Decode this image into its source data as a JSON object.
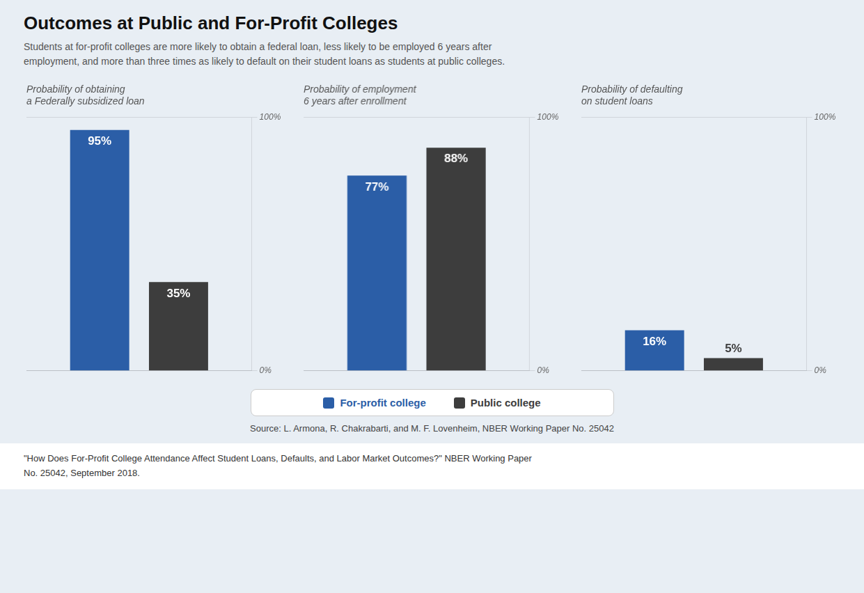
{
  "title": "Outcomes at Public and For-Profit Colleges",
  "subtitle": "Students at for-profit colleges are more likely to obtain a federal loan, less likely to be employed 6 years after\nemployment, and more than three times as likely to default on their student loans as students at public colleges.",
  "annotations": [
    "Source: L. Armona, R. Chakrabarti, and M. F. Lovenheim, NBER Working Paper No. 25042",
    "\"How Does For-Profit College Attendance Affect Student Loans, Defaults, and Labor Market Outcomes?\" NBER Working Paper\nNo. 25042, September 2018."
  ],
  "legend": "bottom",
  "chart_data": [
    {
      "type": "bar",
      "title": "Probability of obtaining\na Federally subsidized loan",
      "categories": [
        null
      ],
      "series": [
        {
          "name": "For-profit college",
          "color": "#2B5EA7",
          "values": [
            95
          ],
          "value_labels": [
            "95%"
          ]
        },
        {
          "name": "Public college",
          "color": "#3D3D3D",
          "values": [
            35
          ],
          "value_labels": [
            "35%"
          ]
        }
      ],
      "ylim": [
        0,
        100
      ],
      "yticks": [
        {
          "value": 0,
          "label": "0%"
        },
        {
          "value": 100,
          "label": "100%"
        }
      ],
      "grid": true,
      "data_labels": true,
      "tick_labels": "y"
    },
    {
      "type": "bar",
      "title": "Probability of employment\n6 years after enrollment",
      "categories": [
        null
      ],
      "series": [
        {
          "name": "For-profit college",
          "color": "#2B5EA7",
          "values": [
            77
          ],
          "value_labels": [
            "77%"
          ]
        },
        {
          "name": "Public college",
          "color": "#3D3D3D",
          "values": [
            88
          ],
          "value_labels": [
            "88%"
          ]
        }
      ],
      "ylim": [
        0,
        100
      ],
      "yticks": [
        {
          "value": 0,
          "label": "0%"
        },
        {
          "value": 100,
          "label": "100%"
        }
      ],
      "grid": true,
      "data_labels": true,
      "tick_labels": "y"
    },
    {
      "type": "bar",
      "title": "Probability of defaulting\non student loans",
      "categories": [
        null
      ],
      "series": [
        {
          "name": "For-profit college",
          "color": "#2B5EA7",
          "values": [
            16
          ],
          "value_labels": [
            "16%"
          ]
        },
        {
          "name": "Public college",
          "color": "#3D3D3D",
          "values": [
            5
          ],
          "value_labels": [
            "5%"
          ]
        }
      ],
      "ylim": [
        0,
        100
      ],
      "yticks": [
        {
          "value": 0,
          "label": "0%"
        },
        {
          "value": 100,
          "label": "100%"
        }
      ],
      "grid": true,
      "data_labels": true,
      "tick_labels": "y"
    }
  ]
}
